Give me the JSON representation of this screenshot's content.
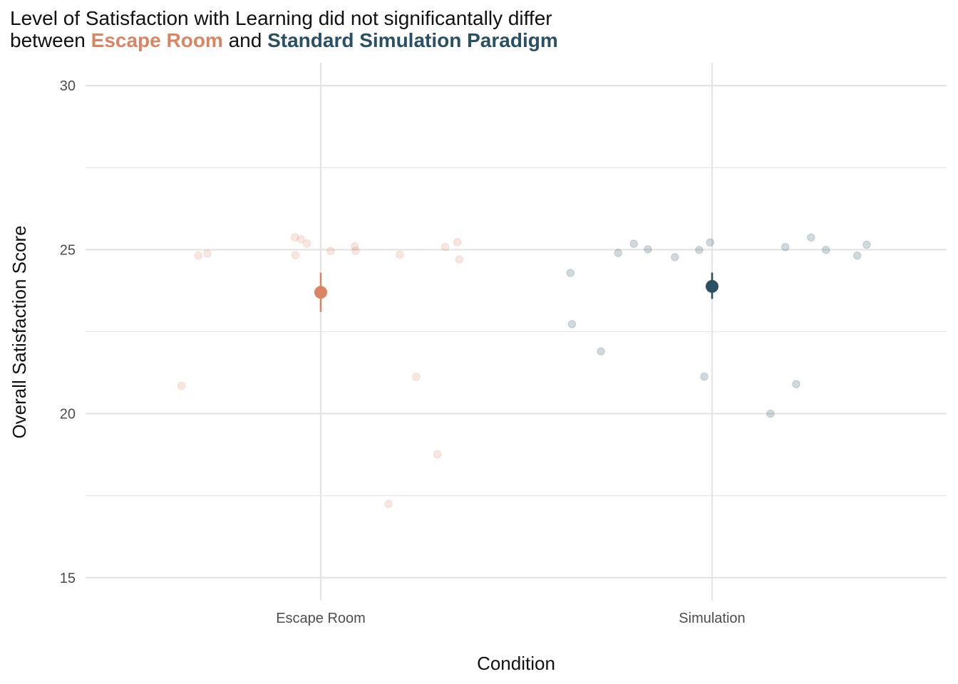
{
  "title": {
    "line1": "Level of Satisfaction with Learning did not significantally differ",
    "line2_prefix": "between ",
    "highlight1": "Escape Room",
    "line2_middle": " and ",
    "highlight2": "Standard Simulation Paradigm"
  },
  "colors": {
    "escape_room": "#DA8461",
    "simulation": "#2A5064",
    "grid": "#E5E5E5"
  },
  "chart_data": {
    "type": "scatter",
    "xlabel": "Condition",
    "ylabel": "Overall Satisfaction Score",
    "categories": [
      "Escape Room",
      "Simulation"
    ],
    "ylim": [
      14.3,
      30.7
    ],
    "yticks": [
      15,
      20,
      25,
      30
    ],
    "grid": true,
    "series": [
      {
        "category": "Escape Room",
        "color": "#DA8461",
        "mean": 23.7,
        "error": [
          23.1,
          24.3
        ],
        "points": [
          {
            "x": -0.356,
            "y": 20.85
          },
          {
            "x": -0.313,
            "y": 24.82
          },
          {
            "x": -0.29,
            "y": 24.88
          },
          {
            "x": -0.066,
            "y": 25.38
          },
          {
            "x": -0.051,
            "y": 25.32
          },
          {
            "x": -0.065,
            "y": 24.83
          },
          {
            "x": -0.035,
            "y": 25.19
          },
          {
            "x": 0.025,
            "y": 24.96
          },
          {
            "x": 0.087,
            "y": 25.1
          },
          {
            "x": 0.089,
            "y": 24.97
          },
          {
            "x": 0.173,
            "y": 17.25
          },
          {
            "x": 0.202,
            "y": 24.85
          },
          {
            "x": 0.244,
            "y": 21.12
          },
          {
            "x": 0.298,
            "y": 18.76
          },
          {
            "x": 0.318,
            "y": 25.08
          },
          {
            "x": 0.349,
            "y": 25.23
          },
          {
            "x": 0.354,
            "y": 24.7
          }
        ]
      },
      {
        "category": "Simulation",
        "color": "#2A5064",
        "mean": 23.88,
        "error": [
          23.5,
          24.3
        ],
        "points": [
          {
            "x": -0.362,
            "y": 24.29
          },
          {
            "x": -0.358,
            "y": 22.73
          },
          {
            "x": -0.284,
            "y": 21.9
          },
          {
            "x": -0.24,
            "y": 24.9
          },
          {
            "x": -0.2,
            "y": 25.18
          },
          {
            "x": -0.164,
            "y": 25.01
          },
          {
            "x": -0.095,
            "y": 24.77
          },
          {
            "x": -0.033,
            "y": 24.99
          },
          {
            "x": -0.02,
            "y": 21.13
          },
          {
            "x": -0.005,
            "y": 25.22
          },
          {
            "x": 0.149,
            "y": 20.0
          },
          {
            "x": 0.187,
            "y": 25.08
          },
          {
            "x": 0.215,
            "y": 20.9
          },
          {
            "x": 0.253,
            "y": 25.37
          },
          {
            "x": 0.291,
            "y": 24.99
          },
          {
            "x": 0.371,
            "y": 24.82
          },
          {
            "x": 0.395,
            "y": 25.15
          }
        ]
      }
    ]
  }
}
